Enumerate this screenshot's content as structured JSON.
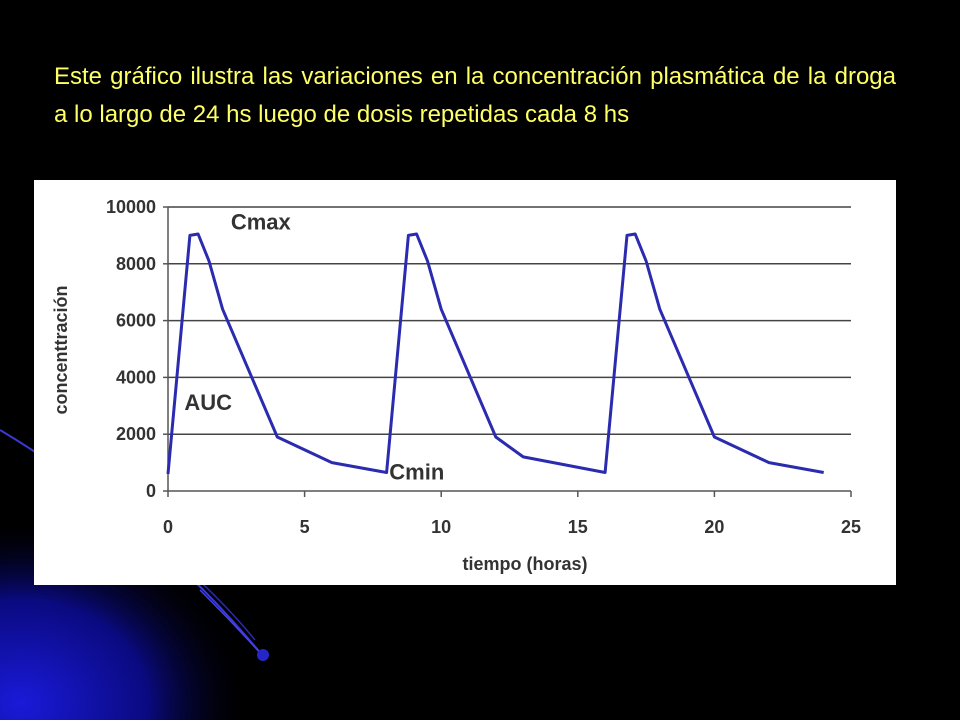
{
  "slide": {
    "text": "Este gráfico ilustra las variaciones en la concentración plasmática de la droga a lo largo de 24 hs luego de dosis repetidas cada 8 hs"
  },
  "colors": {
    "background": "#000000",
    "text": "#ffff66",
    "line": "#2b2bb0",
    "grid": "#444444",
    "panel": "#ffffff"
  },
  "chart_data": {
    "type": "line",
    "title": "",
    "xlabel": "tiempo (horas)",
    "ylabel": "concenttración",
    "xlim": [
      0,
      25
    ],
    "ylim": [
      0,
      10000
    ],
    "xticks": [
      "0",
      "5",
      "10",
      "15",
      "20",
      "25"
    ],
    "yticks": [
      "0",
      "2000",
      "4000",
      "6000",
      "8000",
      "10000"
    ],
    "grid": "horizontal",
    "legend": "none",
    "series": [
      {
        "x": [
          0,
          0.8,
          1.1,
          1.5,
          2.0,
          4.0,
          6.0,
          8.0,
          8.8,
          9.1,
          9.5,
          10.0,
          12.0,
          13.0,
          16.0,
          16.8,
          17.1,
          17.5,
          18.0,
          20.0,
          22.0,
          24.0
        ],
        "y": [
          600,
          9000,
          9050,
          8100,
          6400,
          1900,
          1000,
          650,
          9000,
          9050,
          8100,
          6400,
          1900,
          1200,
          650,
          9000,
          9050,
          8100,
          6400,
          1900,
          1000,
          650
        ]
      }
    ],
    "annotations": [
      {
        "text": "Cmax",
        "x": 2.3,
        "y": 9200
      },
      {
        "text": "AUC",
        "x": 0.6,
        "y": 2850
      },
      {
        "text": "Cmin",
        "x": 8.1,
        "y": 400
      }
    ]
  }
}
